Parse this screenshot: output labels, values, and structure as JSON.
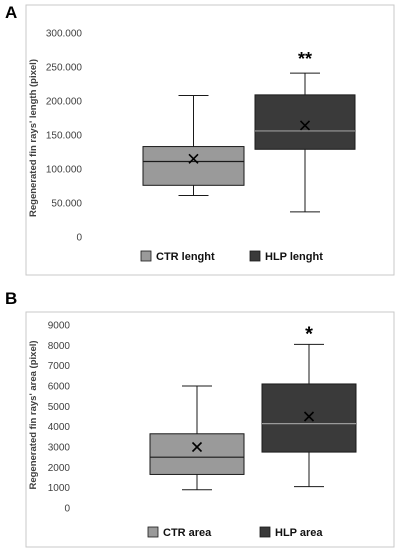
{
  "chart_data": [
    {
      "panel": "A",
      "type": "boxplot",
      "ylabel": "Regenerated fin rays' length (pixel)",
      "ylim": [
        0,
        300000
      ],
      "yticks": [
        0,
        50000,
        100000,
        150000,
        200000,
        250000,
        300000
      ],
      "ytick_labels": [
        "0",
        "50.000",
        "100.000",
        "150.000",
        "200.000",
        "250.000",
        "300.000"
      ],
      "grid": false,
      "legend_position": "bottom",
      "series": [
        {
          "name": "CTR lenght",
          "color": "#9a9a9a",
          "min": 61000,
          "q1": 76000,
          "median": 111000,
          "q3": 133000,
          "max": 208000,
          "mean": 115000,
          "significance": ""
        },
        {
          "name": "HLP lenght",
          "color": "#3a3a3a",
          "min": 37000,
          "q1": 129000,
          "median": 156000,
          "q3": 209000,
          "max": 241000,
          "mean": 164000,
          "significance": "**"
        }
      ]
    },
    {
      "panel": "B",
      "type": "boxplot",
      "ylabel": "Regenerated fin rays' area (pixel)",
      "ylim": [
        0,
        9000
      ],
      "yticks": [
        0,
        1000,
        2000,
        3000,
        4000,
        5000,
        6000,
        7000,
        8000,
        9000
      ],
      "ytick_labels": [
        "0",
        "1000",
        "2000",
        "3000",
        "4000",
        "5000",
        "6000",
        "7000",
        "8000",
        "9000"
      ],
      "grid": false,
      "legend_position": "bottom",
      "series": [
        {
          "name": "CTR area",
          "color": "#9a9a9a",
          "min": 900,
          "q1": 1650,
          "median": 2500,
          "q3": 3650,
          "max": 6000,
          "mean": 3000,
          "significance": ""
        },
        {
          "name": "HLP area",
          "color": "#3a3a3a",
          "min": 1050,
          "q1": 2750,
          "median": 4150,
          "q3": 6100,
          "max": 8050,
          "mean": 4500,
          "significance": "*"
        }
      ]
    }
  ]
}
